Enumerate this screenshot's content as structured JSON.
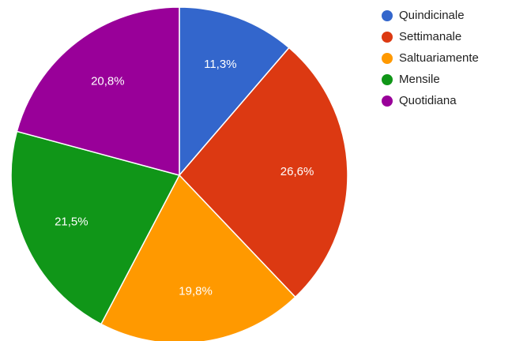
{
  "chart_data": {
    "type": "pie",
    "categories": [
      "Quindicinale",
      "Settimanale",
      "Saltuariamente",
      "Mensile",
      "Quotidiana"
    ],
    "values": [
      11.3,
      26.6,
      19.8,
      21.5,
      20.8
    ],
    "value_labels": [
      "11,3%",
      "26,6%",
      "19,8%",
      "21,5%",
      "20,8%"
    ],
    "colors": [
      "#3366cc",
      "#dc3912",
      "#ff9900",
      "#109618",
      "#990099"
    ],
    "legend": "right"
  }
}
